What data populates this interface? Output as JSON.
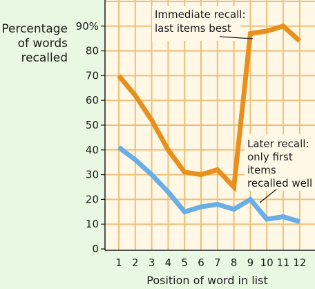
{
  "chart_data": {
    "type": "line",
    "ylabel_lines": [
      "Percentage",
      "of words",
      "recalled"
    ],
    "xlabel": "Position of word in list",
    "x": [
      1,
      2,
      3,
      4,
      5,
      6,
      7,
      8,
      9,
      10,
      11,
      12
    ],
    "x_ticks": [
      "1",
      "2",
      "3",
      "4",
      "5",
      "6",
      "7",
      "8",
      "9",
      "10",
      "11",
      "12"
    ],
    "y_ticks": [
      "0",
      "10",
      "20",
      "30",
      "40",
      "50",
      "60",
      "70",
      "80",
      "90%"
    ],
    "ylim": [
      0,
      100
    ],
    "grid": true,
    "series": [
      {
        "key": "immediate",
        "color": "#e8901d",
        "values": [
          70,
          62,
          52,
          40,
          31,
          30,
          32,
          25,
          87,
          88,
          90,
          84
        ]
      },
      {
        "key": "later",
        "color": "#6aaee6",
        "values": [
          41,
          36,
          30,
          23,
          15,
          17,
          18,
          16,
          20,
          12,
          13,
          11
        ]
      }
    ],
    "annotations": [
      {
        "key": "immediate",
        "lines": [
          "Immediate recall:",
          "last items best"
        ]
      },
      {
        "key": "later",
        "lines": [
          "Later recall:",
          "only first",
          "items",
          "recalled well"
        ]
      }
    ]
  },
  "colors": {
    "page_background": "#e9f8e2",
    "plot_background": "#fff8e6",
    "grid": "#f0bf79",
    "axis": "#1a1a1a"
  }
}
